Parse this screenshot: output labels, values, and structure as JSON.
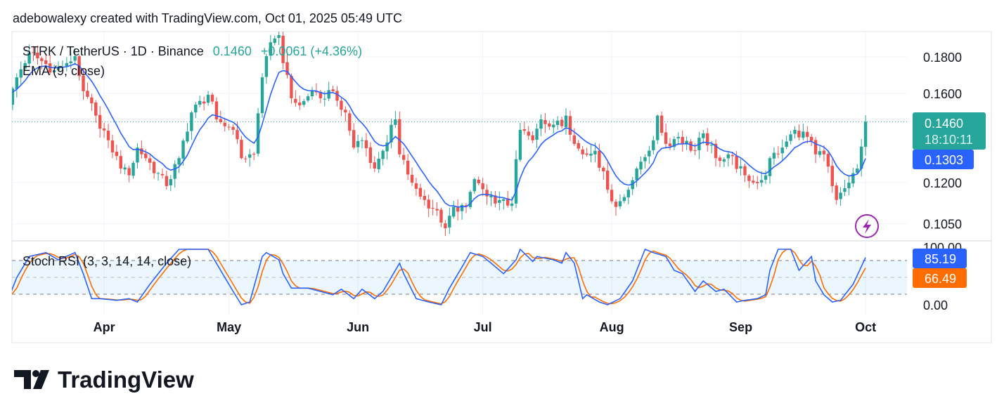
{
  "header": {
    "caption": "adebowalexy created with TradingView.com, Oct 01, 2025 05:49 UTC"
  },
  "legend": {
    "symbol": "STRK / TetherUS · 1D · Binance",
    "last": "0.1460",
    "change": "+0.0061 (+4.36%)",
    "ema_label": "EMA (9, close)",
    "stoch_label": "Stoch RSI (3, 3, 14, 14, close)"
  },
  "price_axis": {
    "ticks": [
      "0.1800",
      "0.1600",
      "0.1200",
      "0.1050"
    ],
    "last_price": "0.1460",
    "countdown": "18:10:11",
    "ema_value": "0.1303"
  },
  "stoch_axis": {
    "ticks": [
      "100.00",
      "0.00"
    ],
    "k_value": "85.19",
    "d_value": "66.49"
  },
  "logo": {
    "text": "TradingView"
  },
  "colors": {
    "up": "#26a69a",
    "down": "#ef5350",
    "ema": "#2962ff",
    "k": "#2962ff",
    "d": "#ff6d00",
    "text": "#131722",
    "lightning": "#9c27b0"
  },
  "chart_data": [
    {
      "type": "candlestick",
      "title": "STRK / TetherUS · 1D · Binance",
      "x_unit": "days since 2025-03-09",
      "scale": "log",
      "ylim": [
        0.101,
        0.196
      ],
      "y_ticks": [
        0.18,
        0.16,
        0.12,
        0.105
      ],
      "x_ticks": [
        {
          "label": "Apr",
          "day": 23
        },
        {
          "label": "May",
          "day": 53
        },
        {
          "label": "Jun",
          "day": 84
        },
        {
          "label": "Jul",
          "day": 114
        },
        {
          "label": "Aug",
          "day": 145
        },
        {
          "label": "Sep",
          "day": 176
        },
        {
          "label": "Oct",
          "day": 206
        }
      ],
      "close_keypoints": [
        [
          0,
          0.1539
        ],
        [
          2,
          0.1685
        ],
        [
          5,
          0.1825
        ],
        [
          11,
          0.1724
        ],
        [
          14,
          0.1764
        ],
        [
          16,
          0.1804
        ],
        [
          18,
          0.1611
        ],
        [
          21,
          0.1489
        ],
        [
          24,
          0.1375
        ],
        [
          27,
          0.1255
        ],
        [
          29,
          0.1228
        ],
        [
          31,
          0.1343
        ],
        [
          33,
          0.1298
        ],
        [
          38,
          0.1186
        ],
        [
          41,
          0.1298
        ],
        [
          44,
          0.1504
        ],
        [
          48,
          0.1593
        ],
        [
          50,
          0.1471
        ],
        [
          54,
          0.1422
        ],
        [
          56,
          0.1298
        ],
        [
          59,
          0.1314
        ],
        [
          61,
          0.1685
        ],
        [
          62,
          0.1804
        ],
        [
          64,
          0.191
        ],
        [
          65,
          0.1931
        ],
        [
          66,
          0.1764
        ],
        [
          68,
          0.1575
        ],
        [
          70,
          0.1539
        ],
        [
          73,
          0.1611
        ],
        [
          75,
          0.1575
        ],
        [
          78,
          0.1611
        ],
        [
          81,
          0.1504
        ],
        [
          83,
          0.1343
        ],
        [
          85,
          0.1375
        ],
        [
          88,
          0.1255
        ],
        [
          90,
          0.1329
        ],
        [
          93,
          0.1471
        ],
        [
          94,
          0.1314
        ],
        [
          97,
          0.1199
        ],
        [
          100,
          0.1134
        ],
        [
          103,
          0.1096
        ],
        [
          105,
          0.1035
        ],
        [
          107,
          0.1109
        ],
        [
          110,
          0.1109
        ],
        [
          112,
          0.1213
        ],
        [
          115,
          0.1147
        ],
        [
          117,
          0.1121
        ],
        [
          121,
          0.1121
        ],
        [
          123,
          0.1422
        ],
        [
          126,
          0.1375
        ],
        [
          128,
          0.1471
        ],
        [
          133,
          0.1439
        ],
        [
          134,
          0.1489
        ],
        [
          136,
          0.1359
        ],
        [
          138,
          0.1314
        ],
        [
          141,
          0.1329
        ],
        [
          144,
          0.1172
        ],
        [
          146,
          0.1109
        ],
        [
          149,
          0.1172
        ],
        [
          151,
          0.1255
        ],
        [
          155,
          0.1375
        ],
        [
          156,
          0.1489
        ],
        [
          158,
          0.1359
        ],
        [
          161,
          0.139
        ],
        [
          165,
          0.1329
        ],
        [
          167,
          0.1406
        ],
        [
          170,
          0.1298
        ],
        [
          173,
          0.1314
        ],
        [
          177,
          0.1228
        ],
        [
          179,
          0.1199
        ],
        [
          182,
          0.1228
        ],
        [
          183,
          0.1298
        ],
        [
          186,
          0.1343
        ],
        [
          189,
          0.1422
        ],
        [
          192,
          0.139
        ],
        [
          194,
          0.1314
        ],
        [
          196,
          0.1314
        ],
        [
          198,
          0.1186
        ],
        [
          199,
          0.1134
        ],
        [
          202,
          0.1199
        ],
        [
          204,
          0.1255
        ],
        [
          206,
          0.146
        ]
      ],
      "ema_period": 9,
      "last_close": 0.146,
      "ema_last": 0.1303
    },
    {
      "type": "line",
      "title": "Stoch RSI (3, 3, 14, 14, close)",
      "ylim": [
        0,
        100
      ],
      "bands": [
        20,
        50,
        80
      ],
      "series": [
        {
          "name": "K",
          "keypoints": [
            [
              0,
              11
            ],
            [
              2,
              49
            ],
            [
              5,
              87
            ],
            [
              9,
              94
            ],
            [
              12,
              81
            ],
            [
              16,
              94
            ],
            [
              18,
              56
            ],
            [
              20,
              11
            ],
            [
              22,
              11
            ],
            [
              26,
              8
            ],
            [
              29,
              11
            ],
            [
              31,
              5
            ],
            [
              34,
              37
            ],
            [
              38,
              75
            ],
            [
              41,
              100
            ],
            [
              48,
              100
            ],
            [
              51,
              62
            ],
            [
              54,
              24
            ],
            [
              56,
              0
            ],
            [
              58,
              5
            ],
            [
              61,
              87
            ],
            [
              62,
              94
            ],
            [
              65,
              81
            ],
            [
              66,
              56
            ],
            [
              68,
              30
            ],
            [
              72,
              30
            ],
            [
              75,
              24
            ],
            [
              78,
              18
            ],
            [
              80,
              28
            ],
            [
              83,
              11
            ],
            [
              85,
              28
            ],
            [
              88,
              11
            ],
            [
              90,
              24
            ],
            [
              94,
              75
            ],
            [
              95,
              56
            ],
            [
              98,
              11
            ],
            [
              101,
              5
            ],
            [
              104,
              0
            ],
            [
              106,
              30
            ],
            [
              109,
              68
            ],
            [
              111,
              94
            ],
            [
              114,
              87
            ],
            [
              116,
              75
            ],
            [
              119,
              56
            ],
            [
              122,
              81
            ],
            [
              123,
              100
            ],
            [
              126,
              78
            ],
            [
              127,
              87
            ],
            [
              131,
              81
            ],
            [
              133,
              75
            ],
            [
              134,
              94
            ],
            [
              136,
              75
            ],
            [
              138,
              11
            ],
            [
              139,
              18
            ],
            [
              142,
              5
            ],
            [
              144,
              0
            ],
            [
              147,
              11
            ],
            [
              150,
              43
            ],
            [
              153,
              100
            ],
            [
              155,
              94
            ],
            [
              158,
              87
            ],
            [
              160,
              62
            ],
            [
              162,
              56
            ],
            [
              165,
              24
            ],
            [
              167,
              43
            ],
            [
              170,
              24
            ],
            [
              172,
              28
            ],
            [
              175,
              5
            ],
            [
              177,
              8
            ],
            [
              180,
              11
            ],
            [
              182,
              18
            ],
            [
              183,
              62
            ],
            [
              185,
              100
            ],
            [
              188,
              100
            ],
            [
              190,
              62
            ],
            [
              193,
              87
            ],
            [
              194,
              43
            ],
            [
              196,
              18
            ],
            [
              198,
              5
            ],
            [
              200,
              8
            ],
            [
              203,
              37
            ],
            [
              206,
              85.19
            ]
          ]
        },
        {
          "name": "D",
          "smoothing": 3,
          "last": 66.49
        }
      ]
    }
  ]
}
